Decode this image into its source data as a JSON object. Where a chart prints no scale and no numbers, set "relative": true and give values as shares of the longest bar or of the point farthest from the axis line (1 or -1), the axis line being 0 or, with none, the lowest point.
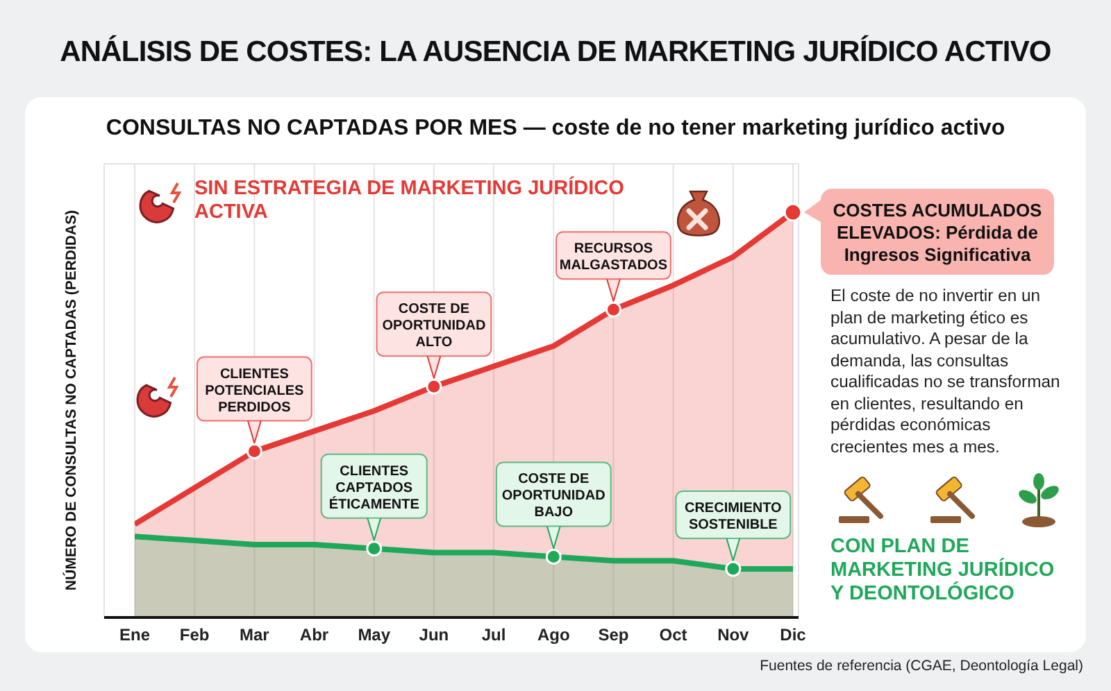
{
  "chart_data": {
    "type": "area",
    "title": "ANÁLISIS DE COSTES: LA AUSENCIA DE MARKETING JURÍDICO ACTIVO",
    "subtitle": "CONSULTAS NO CAPTADAS POR MES — coste de no tener marketing jurídico activo",
    "ylabel": "NÚMERO DE CONSULTAS NO CAPTADAS (PERDIDAS)",
    "relative": true,
    "grid": true,
    "line_style": "solid",
    "categories": [
      "Ene",
      "Feb",
      "Mar",
      "Abr",
      "May",
      "Jun",
      "Jul",
      "Ago",
      "Sep",
      "Oct",
      "Nov",
      "Dic"
    ],
    "series": [
      {
        "name": "SIN ESTRATEGIA DE MARKETING JURÍDICO ACTIVA",
        "color": "#e53935",
        "values": [
          0.23,
          0.32,
          0.41,
          0.46,
          0.51,
          0.57,
          0.62,
          0.67,
          0.76,
          0.82,
          0.89,
          1
        ]
      },
      {
        "name": "CON PLAN DE MARKETING JURÍDICO Y DEONTOLÓGICO",
        "color": "#1fa85a",
        "values": [
          0.2,
          0.19,
          0.18,
          0.18,
          0.17,
          0.16,
          0.16,
          0.15,
          0.14,
          0.14,
          0.12,
          0.12
        ]
      }
    ],
    "annotations": [
      {
        "text": "CLIENTES POTENCIALES PERDIDOS",
        "x": "Mar",
        "y": 0.41
      },
      {
        "text": "COSTE DE OPORTUNIDAD ALTO",
        "x": "Jun",
        "y": 0.57
      },
      {
        "text": "RECURSOS MALGASTADOS",
        "x": "Sep",
        "y": 0.76
      },
      {
        "text": "COSTES ACUMULADOS ELEVADOS: Pérdida de Ingresos Significativa",
        "x": "Dic",
        "y": 1
      },
      {
        "text": "CLIENTES CAPTADOS ÉTICAMENTE",
        "x": "May",
        "y": 0.17
      },
      {
        "text": "COSTE DE OPORTUNIDAD BAJO",
        "x": "Ago",
        "y": 0.15
      },
      {
        "text": "CRECIMIENTO SOSTENIBLE",
        "x": "Nov",
        "y": 0.12
      },
      "El coste de no invertir en un plan de marketing ético es acumulativo. A pesar de la demanda, las consultas cualificadas no se transforman en clientes, resultando en pérdidas económicas crecientes mes a mes.",
      "Fuentes de referencia (CGAE, Deontología Legal)"
    ]
  }
}
